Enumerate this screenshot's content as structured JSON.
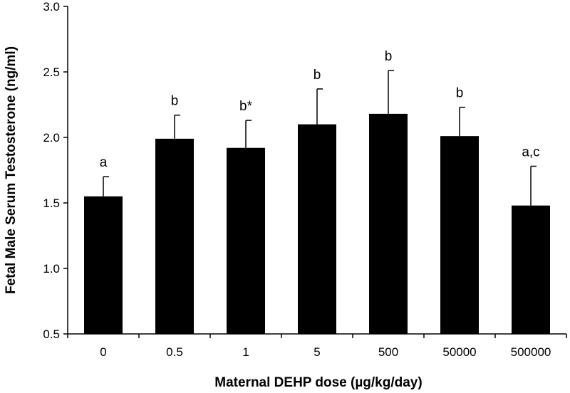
{
  "chart_data": {
    "type": "bar",
    "title": "",
    "xlabel": "Maternal DEHP dose (µg/kg/day)",
    "ylabel": "Fetal Male Serum Testosterone (ng/ml)",
    "ylim": [
      0.5,
      3.0
    ],
    "yticks": [
      "0.5",
      "1.0",
      "1.5",
      "2.0",
      "2.5",
      "3.0"
    ],
    "grid": false,
    "categories": [
      "0",
      "0.5",
      "1",
      "5",
      "500",
      "50000",
      "500000"
    ],
    "values": [
      1.55,
      1.99,
      1.92,
      2.1,
      2.18,
      2.01,
      1.48
    ],
    "errors": [
      0.15,
      0.18,
      0.21,
      0.27,
      0.33,
      0.22,
      0.3
    ],
    "significance_labels": [
      "a",
      "b",
      "b*",
      "b",
      "b",
      "b",
      "a,c"
    ],
    "bar_color": "#000000"
  }
}
